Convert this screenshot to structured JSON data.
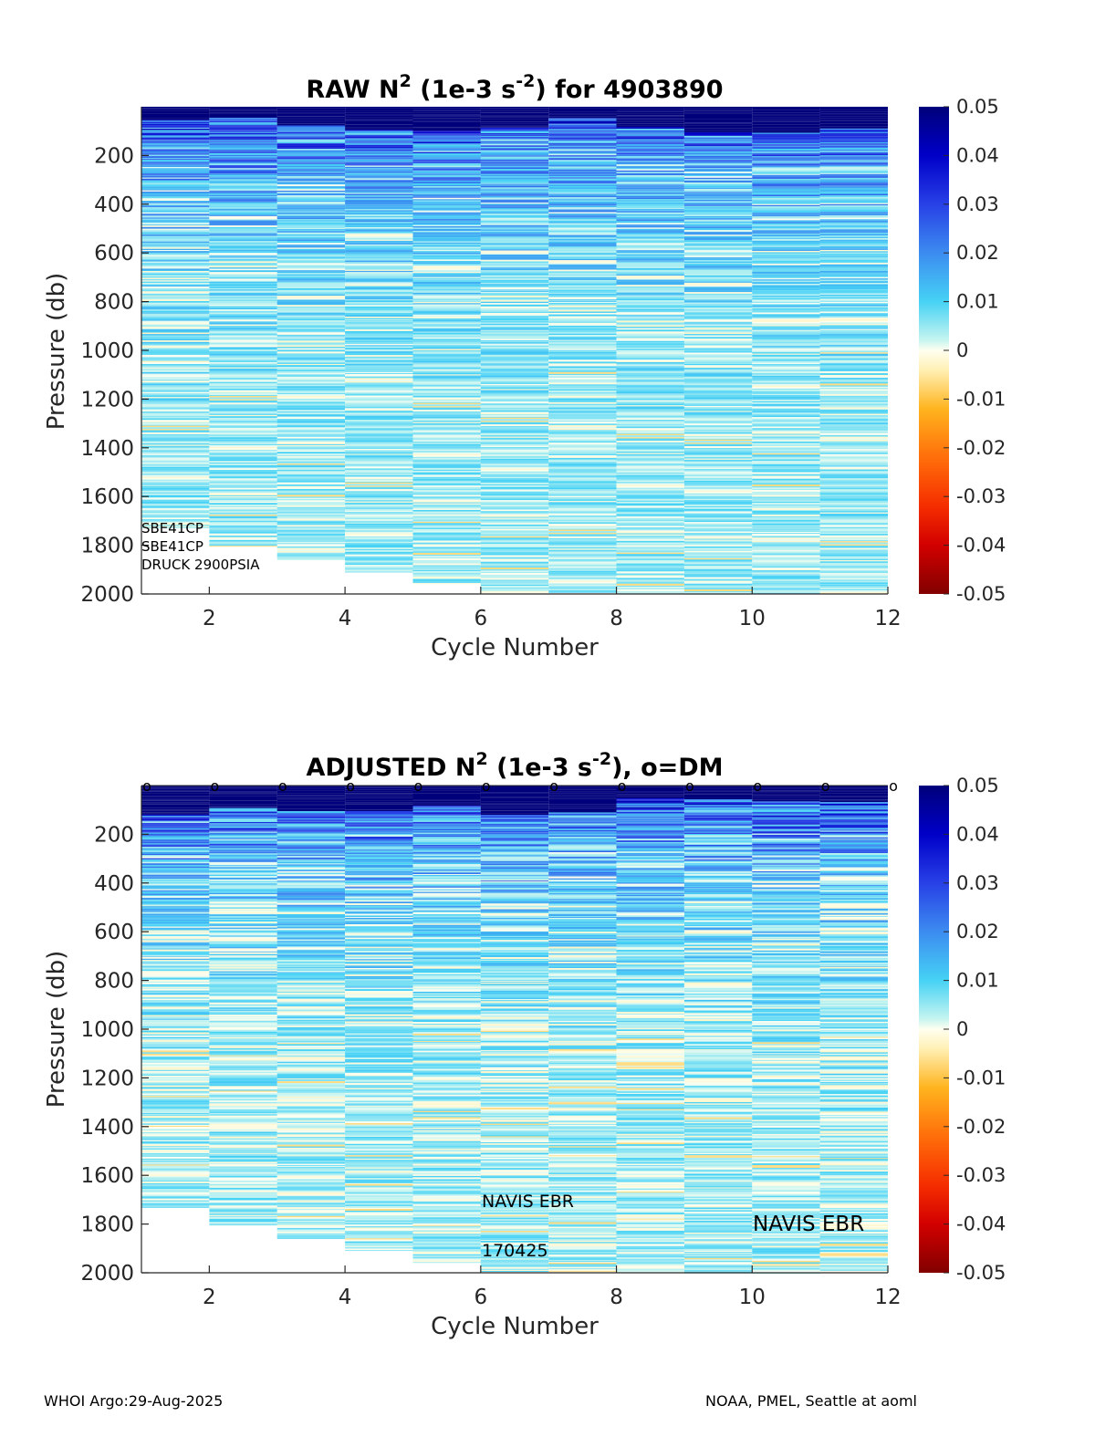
{
  "chart_data": [
    {
      "type": "heatmap",
      "title_main": "RAW N",
      "title_sup1": "2",
      "title_mid": " (1e-3 s",
      "title_sup2": "-2",
      "title_end": ") for 4903890",
      "xlabel": "Cycle Number",
      "ylabel": "Pressure (db)",
      "xlim": [
        1,
        12
      ],
      "ylim": [
        2000,
        0
      ],
      "x_ticks": [
        2,
        4,
        6,
        8,
        10,
        12
      ],
      "y_ticks": [
        200,
        400,
        600,
        800,
        1000,
        1200,
        1400,
        1600,
        1800,
        2000
      ],
      "cycles": [
        1,
        2,
        3,
        4,
        5,
        6,
        7,
        8,
        9,
        10,
        11
      ],
      "max_pressure": [
        1730,
        1805,
        1860,
        1910,
        1960,
        1995,
        1995,
        1998,
        2000,
        2000,
        2000
      ],
      "colorbar": {
        "min": -0.05,
        "max": 0.05,
        "ticks": [
          "0.05",
          "0.04",
          "0.03",
          "0.02",
          "0.01",
          "0",
          "-0.01",
          "-0.02",
          "-0.03",
          "-0.04",
          "-0.05"
        ]
      },
      "annotations": [
        "SBE41CP",
        "SBE41CP",
        "DRUCK 2900PSIA"
      ]
    },
    {
      "type": "heatmap",
      "title_main": "ADJUSTED N",
      "title_sup1": "2",
      "title_mid": " (1e-3 s",
      "title_sup2": "-2",
      "title_end": "), o=DM",
      "xlabel": "Cycle Number",
      "ylabel": "Pressure (db)",
      "xlim": [
        1,
        12
      ],
      "ylim": [
        2000,
        0
      ],
      "x_ticks": [
        2,
        4,
        6,
        8,
        10,
        12
      ],
      "y_ticks": [
        200,
        400,
        600,
        800,
        1000,
        1200,
        1400,
        1600,
        1800,
        2000
      ],
      "cycles": [
        1,
        2,
        3,
        4,
        5,
        6,
        7,
        8,
        9,
        10,
        11
      ],
      "max_pressure": [
        1730,
        1805,
        1860,
        1910,
        1960,
        1995,
        1995,
        1998,
        2000,
        2000,
        2000
      ],
      "dm_cycles": [
        1,
        2,
        3,
        4,
        5,
        6,
        7,
        8,
        9,
        10,
        11,
        12
      ],
      "dm_marker": "o",
      "colorbar": {
        "min": -0.05,
        "max": 0.05,
        "ticks": [
          "0.05",
          "0.04",
          "0.03",
          "0.02",
          "0.01",
          "0",
          "-0.01",
          "-0.02",
          "-0.03",
          "-0.04",
          "-0.05"
        ]
      },
      "annotations": [
        "NAVIS EBR",
        "170425",
        "NAVIS EBR"
      ]
    }
  ],
  "footer": {
    "left": "WHOI Argo:29-Aug-2025",
    "right": "NOAA, PMEL, Seattle at aoml"
  }
}
